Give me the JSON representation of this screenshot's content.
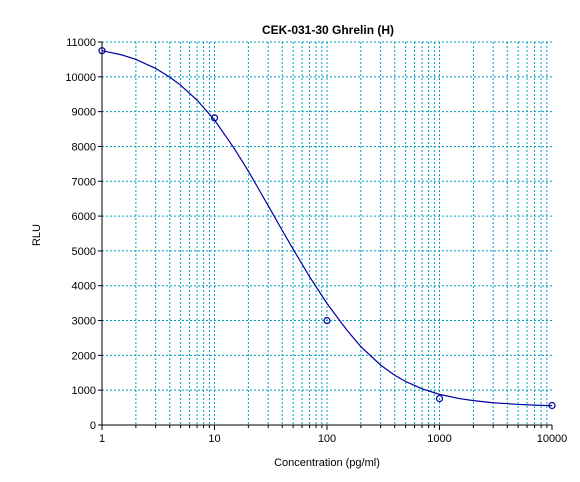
{
  "chart_data": {
    "type": "line",
    "title": "CEK-031-30 Ghrelin (H)",
    "xlabel": "Concentration (pg/ml)",
    "ylabel": "RLU",
    "x_scale": "log",
    "xlim": [
      1,
      10000
    ],
    "ylim": [
      0,
      11000
    ],
    "x_ticks": [
      1,
      10,
      100,
      1000,
      10000
    ],
    "x_tick_labels": [
      "1",
      "10",
      "100",
      "1000",
      "10000"
    ],
    "y_ticks": [
      0,
      1000,
      2000,
      3000,
      4000,
      5000,
      6000,
      7000,
      8000,
      9000,
      10000,
      11000
    ],
    "y_tick_labels": [
      "0",
      "1000",
      "2000",
      "3000",
      "4000",
      "5000",
      "6000",
      "7000",
      "8000",
      "9000",
      "10000",
      "11000"
    ],
    "grid": true,
    "series": [
      {
        "type": "scatter",
        "x": [
          1,
          10,
          100,
          1000,
          10000
        ],
        "y": [
          10750,
          8820,
          3000,
          760,
          560
        ]
      },
      {
        "type": "line",
        "fit": "4PL",
        "x": [
          1,
          1.5,
          2,
          3,
          4,
          5,
          7,
          10,
          15,
          20,
          30,
          40,
          50,
          70,
          100,
          150,
          200,
          300,
          400,
          500,
          700,
          1000,
          1500,
          2000,
          3000,
          5000,
          7000,
          10000
        ],
        "y": [
          10750,
          10630,
          10500,
          10240,
          9990,
          9760,
          9330,
          8760,
          7940,
          7290,
          6300,
          5590,
          5050,
          4260,
          3490,
          2730,
          2250,
          1720,
          1430,
          1250,
          1040,
          880,
          760,
          700,
          640,
          590,
          570,
          555
        ]
      }
    ],
    "colors": {
      "line": "#0000a0",
      "grid": "#00a0c0",
      "axis": "#000000"
    }
  }
}
